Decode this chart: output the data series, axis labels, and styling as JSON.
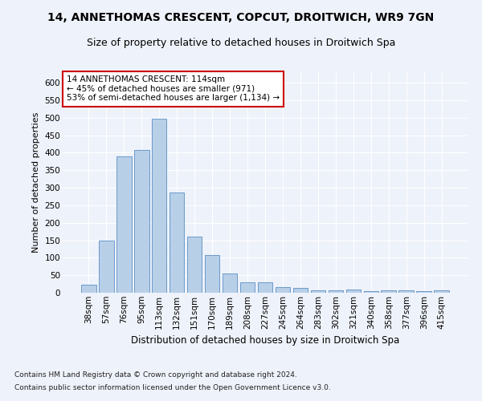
{
  "title1": "14, ANNETHOMAS CRESCENT, COPCUT, DROITWICH, WR9 7GN",
  "title2": "Size of property relative to detached houses in Droitwich Spa",
  "xlabel": "Distribution of detached houses by size in Droitwich Spa",
  "ylabel": "Number of detached properties",
  "footer1": "Contains HM Land Registry data © Crown copyright and database right 2024.",
  "footer2": "Contains public sector information licensed under the Open Government Licence v3.0.",
  "annotation_title": "14 ANNETHOMAS CRESCENT: 114sqm",
  "annotation_line1": "← 45% of detached houses are smaller (971)",
  "annotation_line2": "53% of semi-detached houses are larger (1,134) →",
  "categories": [
    "38sqm",
    "57sqm",
    "76sqm",
    "95sqm",
    "113sqm",
    "132sqm",
    "151sqm",
    "170sqm",
    "189sqm",
    "208sqm",
    "227sqm",
    "245sqm",
    "264sqm",
    "283sqm",
    "302sqm",
    "321sqm",
    "340sqm",
    "358sqm",
    "377sqm",
    "396sqm",
    "415sqm"
  ],
  "values": [
    22,
    148,
    390,
    408,
    497,
    287,
    160,
    108,
    54,
    30,
    30,
    17,
    13,
    8,
    7,
    10,
    4,
    6,
    7,
    5,
    6
  ],
  "bar_color": "#b8cfe8",
  "bar_edgecolor": "#5a8fc4",
  "bg_color": "#eef2fa",
  "grid_color": "#ffffff",
  "ylim": [
    0,
    630
  ],
  "yticks": [
    0,
    50,
    100,
    150,
    200,
    250,
    300,
    350,
    400,
    450,
    500,
    550,
    600
  ],
  "title1_fontsize": 10,
  "title2_fontsize": 9,
  "xlabel_fontsize": 8.5,
  "ylabel_fontsize": 8,
  "tick_fontsize": 7.5,
  "annotation_box_facecolor": "#ffffff",
  "annotation_box_edgecolor": "#cc0000",
  "annotation_fontsize": 7.5
}
